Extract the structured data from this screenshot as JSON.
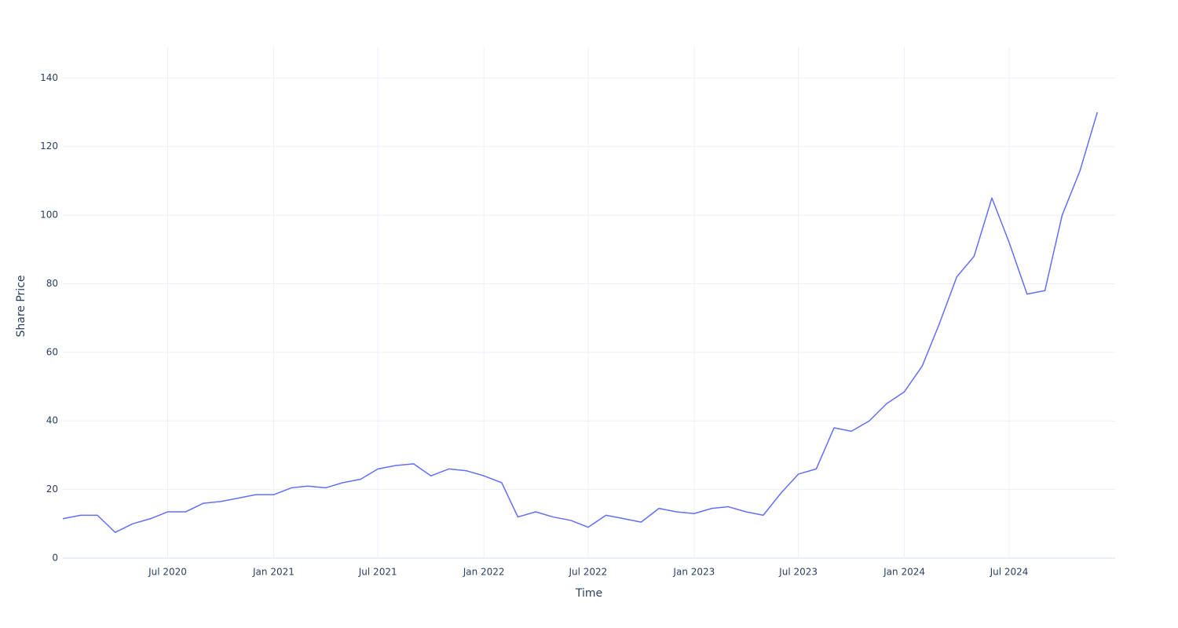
{
  "chart_data": {
    "type": "line",
    "x_label": "Time",
    "y_label": "Share Price",
    "x": [
      "2020-01",
      "2020-02",
      "2020-03",
      "2020-04",
      "2020-05",
      "2020-06",
      "2020-07",
      "2020-08",
      "2020-09",
      "2020-10",
      "2020-11",
      "2020-12",
      "2021-01",
      "2021-02",
      "2021-03",
      "2021-04",
      "2021-05",
      "2021-06",
      "2021-07",
      "2021-08",
      "2021-09",
      "2021-10",
      "2021-11",
      "2021-12",
      "2022-01",
      "2022-02",
      "2022-03",
      "2022-04",
      "2022-05",
      "2022-06",
      "2022-07",
      "2022-08",
      "2022-09",
      "2022-10",
      "2022-11",
      "2022-12",
      "2023-01",
      "2023-02",
      "2023-03",
      "2023-04",
      "2023-05",
      "2023-06",
      "2023-07",
      "2023-08",
      "2023-09",
      "2023-10",
      "2023-11",
      "2023-12",
      "2024-01",
      "2024-02",
      "2024-03",
      "2024-04",
      "2024-05",
      "2024-06",
      "2024-07",
      "2024-08",
      "2024-09",
      "2024-10",
      "2024-11",
      "2024-12"
    ],
    "values": [
      11.5,
      12.5,
      12.5,
      7.5,
      10,
      11.5,
      13.5,
      13.5,
      16,
      16.5,
      17.5,
      18.5,
      18.5,
      20.5,
      21,
      20.5,
      22,
      23,
      26,
      27,
      27.5,
      24,
      26,
      25.5,
      24,
      22,
      12,
      13.5,
      12,
      11,
      9,
      12.5,
      11.5,
      10.5,
      14.5,
      13.5,
      13,
      14.5,
      15,
      13.5,
      12.5,
      19,
      24.5,
      26,
      38,
      37,
      40,
      45,
      48.5,
      56,
      68,
      82,
      88,
      105,
      92,
      77,
      78,
      100,
      113,
      130
    ],
    "color": "#636efa",
    "xlim": [
      "2020-01",
      "2025-01"
    ],
    "xticks": [
      {
        "value": "2020-07",
        "label": "Jul 2020"
      },
      {
        "value": "2021-01",
        "label": "Jan 2021"
      },
      {
        "value": "2021-07",
        "label": "Jul 2021"
      },
      {
        "value": "2022-01",
        "label": "Jan 2022"
      },
      {
        "value": "2022-07",
        "label": "Jul 2022"
      },
      {
        "value": "2023-01",
        "label": "Jan 2023"
      },
      {
        "value": "2023-07",
        "label": "Jul 2023"
      },
      {
        "value": "2024-01",
        "label": "Jan 2024"
      },
      {
        "value": "2024-07",
        "label": "Jul 2024"
      }
    ],
    "ylim": [
      0,
      149
    ],
    "yticks": [
      0,
      20,
      40,
      60,
      80,
      100,
      120,
      140
    ],
    "grid": true
  }
}
